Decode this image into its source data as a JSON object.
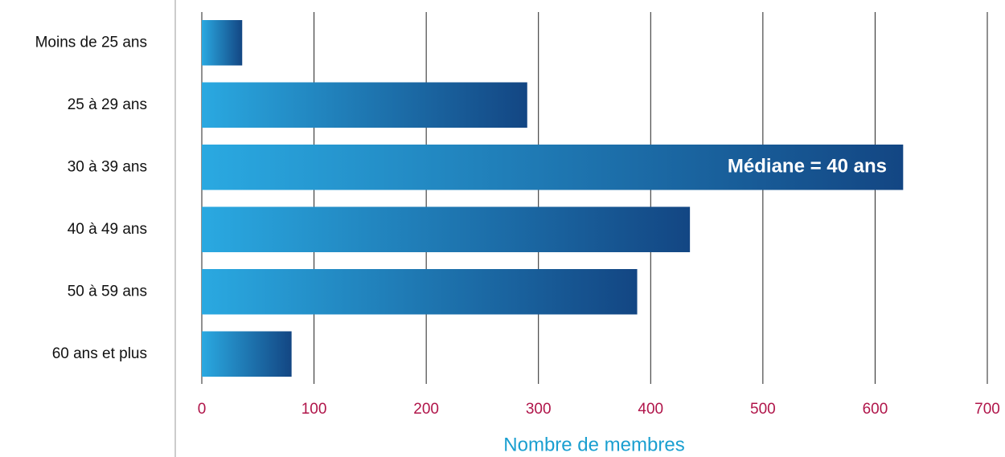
{
  "chart_data": {
    "type": "bar",
    "orientation": "horizontal",
    "categories": [
      "Moins de 25 ans",
      "25 à 29 ans",
      "30 à 39 ans",
      "40 à 49 ans",
      "50 à 59 ans",
      "60 ans et plus"
    ],
    "values": [
      36,
      290,
      625,
      435,
      388,
      80
    ],
    "gradient": [
      "#2aa9e1",
      "#134683"
    ],
    "xlim": [
      0,
      700
    ],
    "xticks": [
      0,
      100,
      200,
      300,
      400,
      500,
      600,
      700
    ],
    "grid": true,
    "xlabel": "Nombre de membres",
    "annotation": "Médiane = 40 ans"
  }
}
